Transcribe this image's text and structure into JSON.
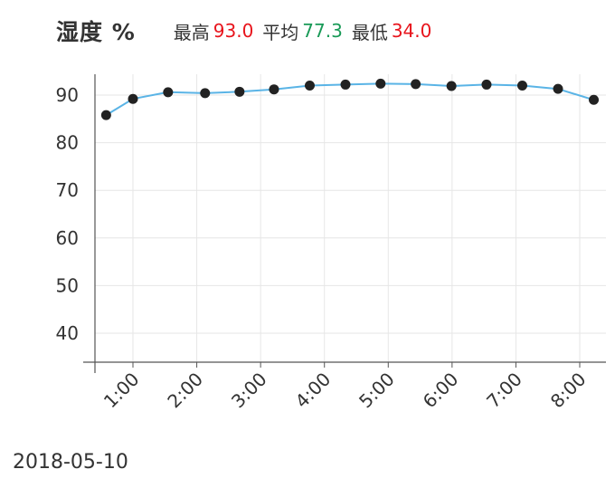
{
  "header": {
    "title": "湿度 %",
    "max_label": "最高",
    "max_value": "93.0",
    "avg_label": "平均",
    "avg_value": "77.3",
    "min_label": "最低",
    "min_value": "34.0"
  },
  "footer": {
    "date": "2018-05-10"
  },
  "colors": {
    "line": "#5ab4e6",
    "point": "#222222",
    "max": "#e8141c",
    "avg": "#199a57",
    "min": "#e8141c",
    "grid": "#e6e6e6",
    "axis": "#555555"
  },
  "chart_data": {
    "type": "line",
    "title": "湿度 %",
    "xlabel": "",
    "ylabel": "",
    "x_ticks": [
      "1:00",
      "2:00",
      "3:00",
      "4:00",
      "5:00",
      "6:00",
      "7:00",
      "8:00"
    ],
    "y_ticks": [
      40,
      50,
      60,
      70,
      80,
      90
    ],
    "xlim": [
      0.58,
      8.33
    ],
    "ylim": [
      33,
      98
    ],
    "grid": true,
    "series": [
      {
        "x": [
          0.58,
          1.0,
          1.55,
          2.13,
          2.67,
          3.21,
          3.77,
          4.33,
          4.88,
          5.43,
          5.99,
          6.54,
          7.1,
          7.66,
          8.22
        ],
        "values": [
          85.8,
          89.2,
          90.6,
          90.4,
          90.7,
          91.2,
          92.0,
          92.2,
          92.4,
          92.3,
          91.9,
          92.2,
          92.0,
          91.3,
          89.0
        ]
      }
    ]
  }
}
